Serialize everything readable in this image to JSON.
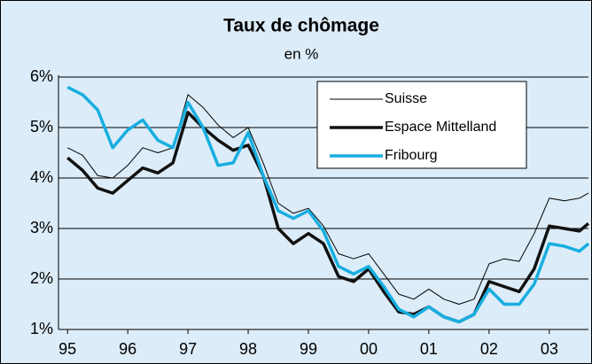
{
  "chart_data": {
    "type": "line",
    "title": "Taux de chômage",
    "subtitle": "en %",
    "x": [
      1995,
      1995.25,
      1995.5,
      1995.75,
      1996,
      1996.25,
      1996.5,
      1996.75,
      1997,
      1997.25,
      1997.5,
      1997.75,
      1998,
      1998.25,
      1998.5,
      1998.75,
      1999,
      1999.25,
      1999.5,
      1999.75,
      2000,
      2000.25,
      2000.5,
      2000.75,
      2001,
      2001.25,
      2001.5,
      2001.75,
      2002,
      2002.25,
      2002.5,
      2002.75,
      2003,
      2003.25,
      2003.5,
      2003.65
    ],
    "series": [
      {
        "name": "Suisse",
        "color": "#000000",
        "width": 1,
        "values": [
          4.6,
          4.45,
          4.05,
          4.0,
          4.25,
          4.6,
          4.5,
          4.6,
          5.65,
          5.4,
          5.05,
          4.8,
          5.0,
          4.3,
          3.5,
          3.3,
          3.4,
          3.05,
          2.5,
          2.4,
          2.5,
          2.1,
          1.7,
          1.6,
          1.8,
          1.6,
          1.5,
          1.6,
          2.3,
          2.4,
          2.35,
          2.9,
          3.6,
          3.55,
          3.6,
          3.7
        ]
      },
      {
        "name": "Espace Mittelland",
        "color": "#111111",
        "width": 3.5,
        "values": [
          4.4,
          4.15,
          3.8,
          3.7,
          3.95,
          4.2,
          4.1,
          4.3,
          5.3,
          5.0,
          4.75,
          4.55,
          4.65,
          4.05,
          3.0,
          2.7,
          2.9,
          2.7,
          2.05,
          1.95,
          2.2,
          1.75,
          1.35,
          1.3,
          1.45,
          1.25,
          1.15,
          1.3,
          1.95,
          1.85,
          1.75,
          2.2,
          3.05,
          3.0,
          2.95,
          3.1
        ]
      },
      {
        "name": "Fribourg",
        "color": "#17aee0",
        "width": 3.5,
        "values": [
          5.8,
          5.65,
          5.35,
          4.6,
          4.95,
          5.15,
          4.75,
          4.6,
          5.5,
          5.0,
          4.25,
          4.3,
          4.9,
          4.05,
          3.35,
          3.2,
          3.35,
          2.95,
          2.25,
          2.1,
          2.25,
          1.85,
          1.4,
          1.25,
          1.45,
          1.25,
          1.15,
          1.3,
          1.8,
          1.5,
          1.5,
          1.9,
          2.7,
          2.65,
          2.55,
          2.7
        ]
      }
    ],
    "xlim": [
      1994.85,
      2003.65
    ],
    "xticks": [
      {
        "value": 1995,
        "label": "95"
      },
      {
        "value": 1996,
        "label": "96"
      },
      {
        "value": 1997,
        "label": "97"
      },
      {
        "value": 1998,
        "label": "98"
      },
      {
        "value": 1999,
        "label": "99"
      },
      {
        "value": 2000,
        "label": "00"
      },
      {
        "value": 2001,
        "label": "01"
      },
      {
        "value": 2002,
        "label": "02"
      },
      {
        "value": 2003,
        "label": "03"
      }
    ],
    "ylim": [
      1,
      6
    ],
    "yticks": [
      {
        "value": 1,
        "label": "1%"
      },
      {
        "value": 2,
        "label": "2%"
      },
      {
        "value": 3,
        "label": "3%"
      },
      {
        "value": 4,
        "label": "4%"
      },
      {
        "value": 5,
        "label": "5%"
      },
      {
        "value": 6,
        "label": "6%"
      }
    ],
    "grid": true
  }
}
